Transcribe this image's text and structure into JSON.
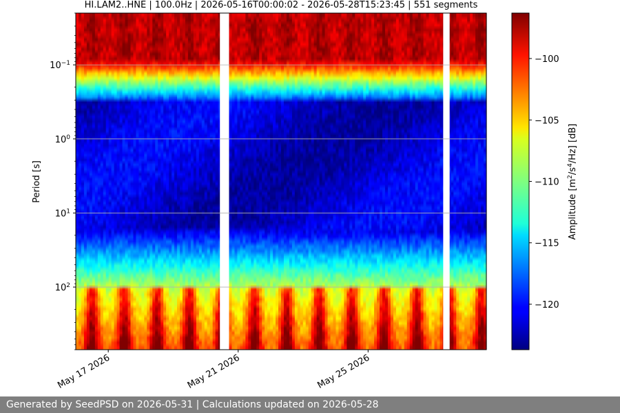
{
  "chart_data": {
    "type": "heatmap",
    "title": "HI.LAM2..HNE | 100.0Hz | 2026-05-16T00:00:02 - 2026-05-28T15:23:45 | 551 segments",
    "ylabel": "Period [s]",
    "colorbar_label_parts": [
      "Amplitude [m",
      "2",
      "/s",
      "4",
      "/Hz] [dB]"
    ],
    "y_scale": "log",
    "y_inverted": true,
    "x_range": [
      "2026-05-16",
      "2026-05-28T15:23:45"
    ],
    "y_range": [
      0.02,
      700
    ],
    "x_ticks": [
      {
        "date": "2026-05-17",
        "label": "May 17 2026"
      },
      {
        "date": "2026-05-21",
        "label": "May 21 2026"
      },
      {
        "date": "2026-05-25",
        "label": "May 25 2026"
      }
    ],
    "y_ticks": [
      {
        "value": 0.1,
        "base": "10",
        "exp": "−1"
      },
      {
        "value": 1,
        "base": "10",
        "exp": "0"
      },
      {
        "value": 10,
        "base": "10",
        "exp": "1"
      },
      {
        "value": 100,
        "base": "10",
        "exp": "2"
      }
    ],
    "colorbar_range": [
      -123.7,
      -96.3
    ],
    "colorbar_ticks": [
      -100,
      -105,
      -110,
      -115,
      -120
    ],
    "colormap": "jet",
    "gaps": [
      [
        "2026-05-20T10:30",
        "2026-05-20T17:15"
      ],
      [
        "2026-05-27T07:30",
        "2026-05-27T12:15"
      ]
    ],
    "grid": true
  },
  "footer": {
    "text": "Generated by SeedPSD on 2026-05-31 | Calculations updated on 2026-05-28"
  }
}
